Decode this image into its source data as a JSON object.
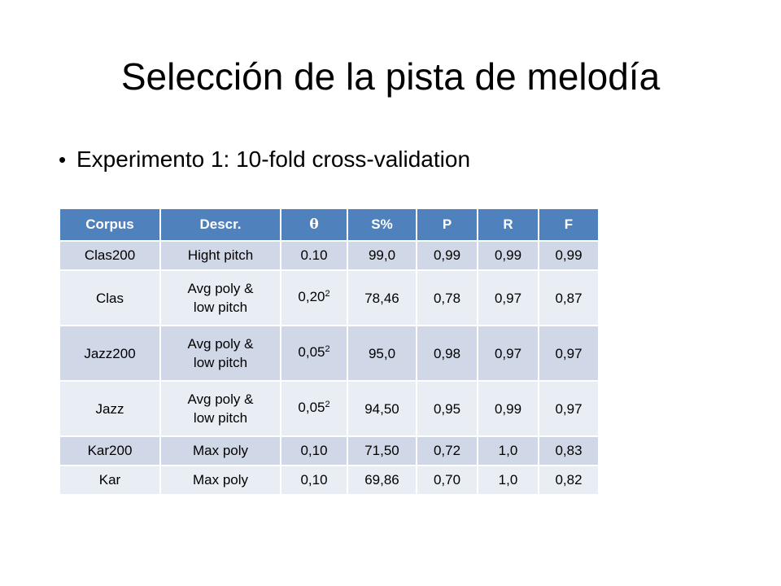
{
  "slide": {
    "title": "Selección de la pista de melodía",
    "bullet": "Experimento 1: 10-fold cross-validation"
  },
  "table": {
    "headers": [
      "Corpus",
      "Descr.",
      "θ",
      "S%",
      "P",
      "R",
      "F"
    ],
    "rows": [
      {
        "corpus": "Clas200",
        "descr": [
          "Hight pitch"
        ],
        "theta": "0.10",
        "theta_sub": "",
        "s": "99,0",
        "p": "0,99",
        "r": "0,99",
        "f": "0,99"
      },
      {
        "corpus": "Clas",
        "descr": [
          "Avg poly &",
          "low pitch"
        ],
        "theta": "0,20",
        "theta_sub": "2",
        "s": "78,46",
        "p": "0,78",
        "r": "0,97",
        "f": "0,87"
      },
      {
        "corpus": "Jazz200",
        "descr": [
          "Avg poly &",
          "low pitch"
        ],
        "theta": "0,05",
        "theta_sub": "2",
        "s": "95,0",
        "p": "0,98",
        "r": "0,97",
        "f": "0,97"
      },
      {
        "corpus": "Jazz",
        "descr": [
          "Avg poly &",
          "low pitch"
        ],
        "theta": "0,05",
        "theta_sub": "2",
        "s": "94,50",
        "p": "0,95",
        "r": "0,99",
        "f": "0,97"
      },
      {
        "corpus": "Kar200",
        "descr": [
          "Max poly"
        ],
        "theta": "0,10",
        "theta_sub": "",
        "s": "71,50",
        "p": "0,72",
        "r": "1,0",
        "f": "0,83"
      },
      {
        "corpus": "Kar",
        "descr": [
          "Max poly"
        ],
        "theta": "0,10",
        "theta_sub": "",
        "s": "69,86",
        "p": "0,70",
        "r": "1,0",
        "f": "0,82"
      }
    ]
  },
  "colors": {
    "header_bg": "#4f81bd",
    "row_odd_bg": "#d0d8e8",
    "row_even_bg": "#e9edf4"
  }
}
